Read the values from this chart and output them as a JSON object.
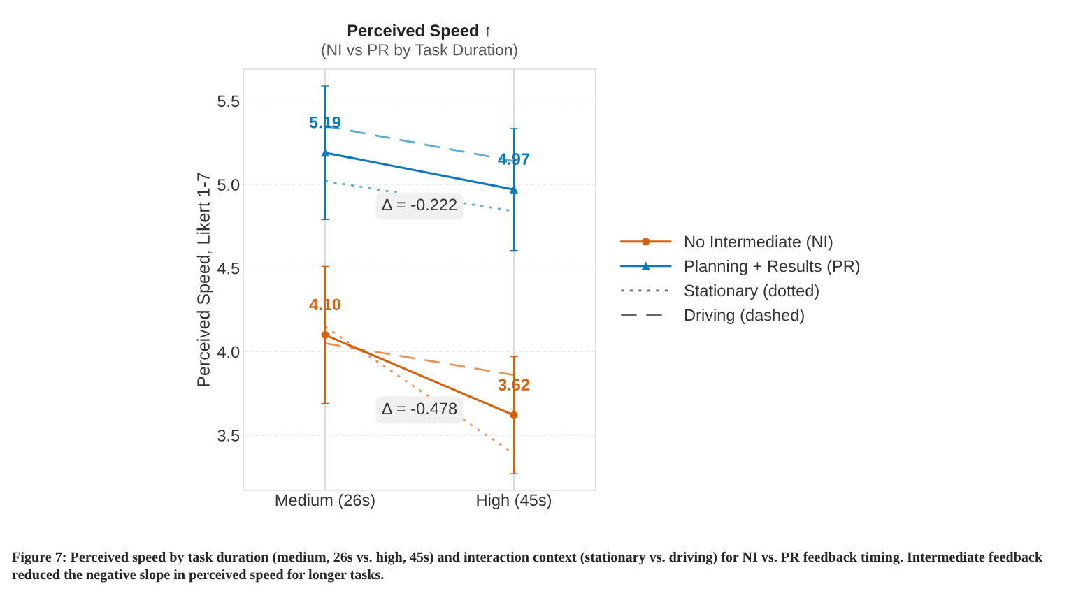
{
  "chart_data": {
    "type": "line",
    "title": "Perceived Speed ↑",
    "subtitle": "(NI vs PR by Task Duration)",
    "ylabel": "Perceived Speed, Likert 1-7",
    "categories": [
      "Medium (26s)",
      "High (45s)"
    ],
    "series": [
      {
        "name": "No Intermediate (NI)",
        "color": "#d6600e",
        "values": [
          4.1,
          3.62
        ],
        "errors": [
          0.41,
          0.35
        ],
        "marker": "circle",
        "line_style": "solid",
        "value_labels": [
          "4.10",
          "3.62"
        ]
      },
      {
        "name": "Planning + Results (PR)",
        "color": "#0f78b8",
        "values": [
          5.19,
          4.97
        ],
        "errors": [
          0.4,
          0.365
        ],
        "marker": "triangle",
        "line_style": "solid",
        "value_labels": [
          "5.19",
          "4.97"
        ]
      },
      {
        "color": "#e8955c",
        "values": [
          4.15,
          3.39
        ],
        "marker": "none",
        "line_style": "dotted"
      },
      {
        "color": "#e8955c",
        "values": [
          4.05,
          3.86
        ],
        "marker": "none",
        "line_style": "dashed"
      },
      {
        "color": "#5ea8d8",
        "values": [
          5.02,
          4.84
        ],
        "marker": "none",
        "line_style": "dotted"
      },
      {
        "color": "#5ea8d8",
        "values": [
          5.35,
          5.14
        ],
        "marker": "none",
        "line_style": "dashed"
      },
      {
        "name": "Stationary (dotted)",
        "color": "#666666",
        "values": [
          null,
          null
        ],
        "marker": "none",
        "line_style": "dotted"
      },
      {
        "name": "Driving (dashed)",
        "color": "#666666",
        "values": [
          null,
          null
        ],
        "marker": "none",
        "line_style": "dashed"
      }
    ],
    "ylim": [
      3.17,
      5.69
    ],
    "yticks": [
      3.5,
      {
        "value": 4.0,
        "label": "4.0"
      },
      4.5,
      {
        "value": 5.0,
        "label": "5.0"
      },
      5.5
    ],
    "grid": true,
    "legend": "right",
    "annotations": [
      "Δ = -0.478",
      "Δ = -0.222",
      "Figure 7: Perceived speed by task duration (medium, 26s vs. high, 45s) and interaction context (stationary vs. driving) for NI vs. PR feedback timing. Intermediate feedback reduced the negative slope in perceived speed for longer tasks."
    ]
  }
}
